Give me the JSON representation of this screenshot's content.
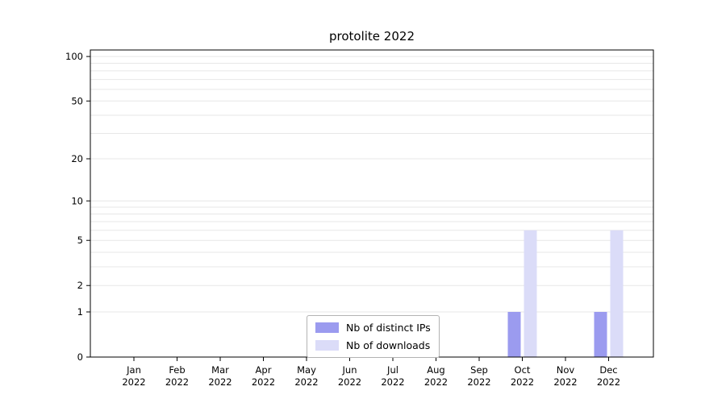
{
  "title": "protolite 2022",
  "chart_data": {
    "type": "bar",
    "categories": [
      "Jan",
      "Feb",
      "Mar",
      "Apr",
      "May",
      "Jun",
      "Jul",
      "Aug",
      "Sep",
      "Oct",
      "Nov",
      "Dec"
    ],
    "category_sublabel": "2022",
    "series": [
      {
        "name": "Nb of distinct IPs",
        "color": "#9b9bef",
        "values": [
          0,
          0,
          0,
          0,
          0,
          0,
          0,
          0,
          0,
          1,
          0,
          1
        ]
      },
      {
        "name": "Nb of downloads",
        "color": "#dbdcf8",
        "values": [
          0,
          0,
          0,
          0,
          0,
          0,
          0,
          0,
          0,
          6,
          0,
          6
        ]
      }
    ],
    "yticks": [
      0,
      1,
      2,
      5,
      10,
      20,
      50,
      100
    ],
    "minor_gridlines": [
      1,
      2,
      3,
      4,
      5,
      6,
      7,
      8,
      9,
      10,
      20,
      30,
      40,
      50,
      60,
      70,
      80,
      90,
      100
    ],
    "scale": "log1p",
    "ylim": [
      0,
      100
    ],
    "grid": true,
    "legend_position": "bottom-center"
  },
  "colors": {
    "distinct_ips": "#9b9bef",
    "downloads": "#dbdcf8",
    "gridline": "#e7e7e7",
    "axis": "#000000",
    "legend_border": "#b3b3b3",
    "background": "#ffffff"
  }
}
